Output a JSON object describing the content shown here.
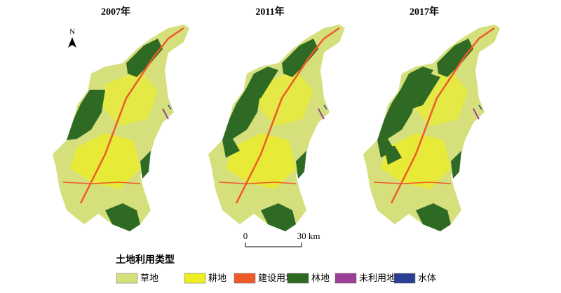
{
  "maps": [
    {
      "title": "2007年"
    },
    {
      "title": "2011年"
    },
    {
      "title": "2017年"
    }
  ],
  "north_label": "N",
  "scale_bar": {
    "start": "0",
    "end": "30 km"
  },
  "legend": {
    "title": "土地利用类型",
    "items": [
      {
        "label": "草地",
        "color": "#d5e07c"
      },
      {
        "label": "耕地",
        "color": "#eeee22"
      },
      {
        "label": "建设用地",
        "color": "#ee5a2a"
      },
      {
        "label": "林地",
        "color": "#2f6a25"
      },
      {
        "label": "未利用地",
        "color": "#9a3f97"
      },
      {
        "label": "水体",
        "color": "#2b3e94"
      }
    ]
  }
}
